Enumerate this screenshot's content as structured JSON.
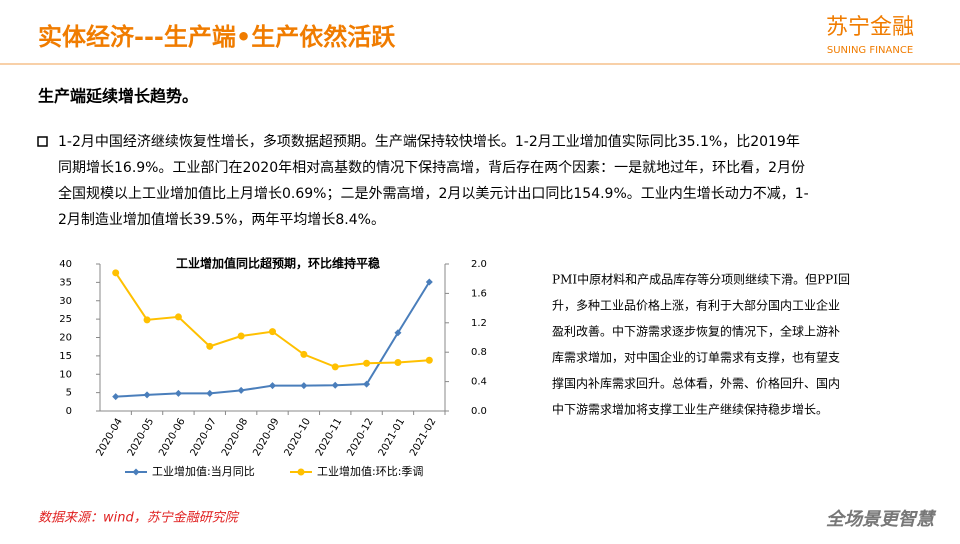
{
  "header": {
    "title": "实体经济---生产端•生产依然活跃",
    "logo": "苏宁金融",
    "logo_en": "SUNING FINANCE"
  },
  "subheading": "生产端延续增长趋势。",
  "paragraph": [
    "1-2月中国经济继续恢复性增长，多项数据超预期。生产端保持较快增长。1-2月工业增加值实际同比35.1%，比2019年",
    "同期增长16.9%。工业部门在2020年相对高基数的情况下保持高增，背后存在两个因素：一是就地过年，环比看，2月份",
    "全国规模以上工业增加值比上月增长0.69%；二是外需高增，2月以美元计出口同比154.9%。工业内生增长动力不减，1-",
    "2月制造业增加值增长39.5%，两年平均增长8.4%。"
  ],
  "side_text": [
    "PMI中原材料和产成品库存等分项则继续下滑。但PPI回",
    "升，多种工业品价格上涨，有利于大部分国内工业企业",
    "盈利改善。中下游需求逐步恢复的情况下，全球上游补",
    "库需求增加，对中国企业的订单需求有支撑，也有望支",
    "撑国内补库需求回升。总体看，外需、价格回升、国内",
    "中下游需求增加将支撑工业生产继续保持稳步增长。"
  ],
  "source": "数据来源：wind，苏宁金融研究院",
  "footer_logo": "全场景更智慧",
  "chart_data": {
    "type": "line",
    "title": "工业增加值同比超预期，环比维持平稳",
    "categories": [
      "2020-04",
      "2020-05",
      "2020-06",
      "2020-07",
      "2020-08",
      "2020-09",
      "2020-10",
      "2020-11",
      "2020-12",
      "2021-01",
      "2021-02"
    ],
    "series": [
      {
        "name": "工业增加值:当月同比",
        "color": "#4a7ebb",
        "values": [
          3.9,
          4.4,
          4.8,
          4.8,
          5.6,
          6.9,
          6.9,
          7.0,
          7.3,
          21.3,
          35.1
        ]
      },
      {
        "name": "工业增加值:环比:季调",
        "color": "#ffc000",
        "axis": "y2",
        "values": [
          1.88,
          1.24,
          1.28,
          0.88,
          1.02,
          1.08,
          0.77,
          0.6,
          0.65,
          0.66,
          0.69
        ]
      }
    ],
    "ylim": [
      0,
      40
    ],
    "yticks": [
      0,
      5,
      10,
      15,
      20,
      25,
      30,
      35,
      40
    ],
    "y2lim": [
      0,
      2.0
    ],
    "y2ticks": [
      {
        "value": 0,
        "label": "0.0"
      },
      {
        "value": 0.4,
        "label": "0.4"
      },
      {
        "value": 0.8,
        "label": "0.8"
      },
      {
        "value": 1.2,
        "label": "1.2"
      },
      {
        "value": 1.6,
        "label": "1.6"
      },
      {
        "value": 2.0,
        "label": "2.0"
      }
    ],
    "legend": "bottom",
    "grid": false
  }
}
